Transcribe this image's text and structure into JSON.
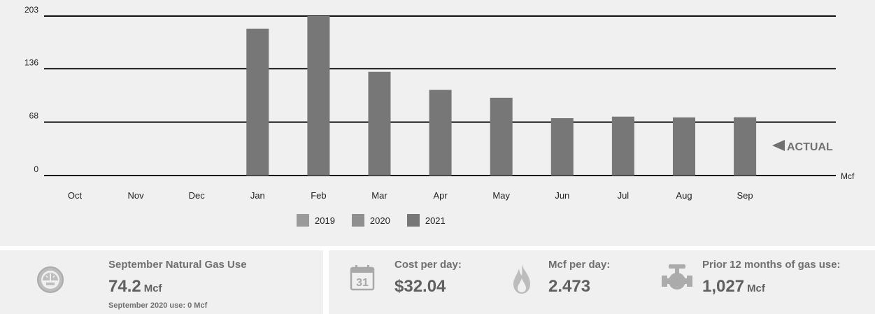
{
  "chart_data": {
    "type": "bar",
    "categories": [
      "Oct",
      "Nov",
      "Dec",
      "Jan",
      "Feb",
      "Mar",
      "Apr",
      "May",
      "Jun",
      "Jul",
      "Aug",
      "Sep"
    ],
    "series": [
      {
        "name": "2019",
        "values": [
          null,
          null,
          null,
          null,
          null,
          null,
          null,
          null,
          null,
          null,
          null,
          null
        ]
      },
      {
        "name": "2020",
        "values": [
          null,
          null,
          null,
          null,
          null,
          null,
          null,
          null,
          null,
          null,
          null,
          null
        ]
      },
      {
        "name": "2021",
        "values": [
          0,
          0,
          0,
          187,
          203,
          132,
          109,
          99,
          73,
          75,
          74,
          74.2
        ]
      }
    ],
    "yticks": [
      0,
      68,
      136,
      203
    ],
    "ylim": [
      0,
      203
    ],
    "unit_label": "Mcf",
    "annotation": "ACTUAL",
    "grid": true,
    "legend_position": "bottom-center"
  },
  "colors": {
    "series_2019": "#9a9a9a",
    "series_2020": "#8f8f8f",
    "series_2021": "#777777",
    "panel_bg": "#f0f0f0",
    "text_label": "#707070"
  },
  "summary": {
    "monthly_use": {
      "icon": "gauge-icon",
      "title": "September Natural Gas Use",
      "value": "74.2",
      "unit": "Mcf",
      "comparison": "September 2020 use: 0 Mcf"
    },
    "cost_per_day": {
      "icon": "calendar-icon",
      "calendar_day": "31",
      "title": "Cost per day:",
      "value": "$32.04"
    },
    "mcf_per_day": {
      "icon": "flame-icon",
      "title": "Mcf per day:",
      "value": "2.473"
    },
    "prior_12_months": {
      "icon": "gas-valve-icon",
      "title": "Prior 12 months of gas use:",
      "value": "1,027",
      "unit": "Mcf"
    }
  }
}
